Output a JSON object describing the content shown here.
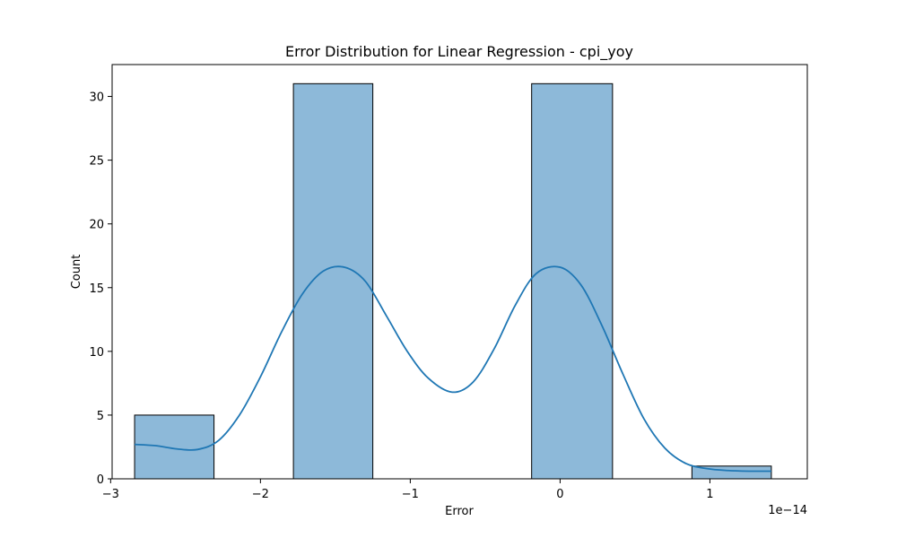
{
  "chart_data": {
    "type": "bar",
    "title": "Error Distribution for Linear Regression - cpi_yoy",
    "xlabel": "Error",
    "ylabel": "Count",
    "x_offset_text": "1e−14",
    "xlim": [
      -2.99,
      1.65
    ],
    "ylim": [
      0,
      32.5
    ],
    "x_ticks": [
      -3,
      -2,
      -1,
      0,
      1
    ],
    "x_tick_labels": [
      "−3",
      "−2",
      "−1",
      "0",
      "1"
    ],
    "y_ticks": [
      0,
      5,
      10,
      15,
      20,
      25,
      30
    ],
    "y_tick_labels": [
      "0",
      "5",
      "10",
      "15",
      "20",
      "25",
      "30"
    ],
    "bins": [
      {
        "x0": -2.84,
        "x1": -2.31,
        "count": 5
      },
      {
        "x0": -2.31,
        "x1": -1.78,
        "count": 0
      },
      {
        "x0": -1.78,
        "x1": -1.25,
        "count": 31
      },
      {
        "x0": -1.25,
        "x1": -0.72,
        "count": 0
      },
      {
        "x0": -0.72,
        "x1": -0.19,
        "count": 0
      },
      {
        "x0": -0.19,
        "x1": 0.35,
        "count": 31
      },
      {
        "x0": 0.35,
        "x1": 0.88,
        "count": 0
      },
      {
        "x0": 0.88,
        "x1": 1.41,
        "count": 1
      }
    ],
    "kde": {
      "x": [
        -2.84,
        -2.7,
        -2.56,
        -2.42,
        -2.28,
        -2.14,
        -2.0,
        -1.86,
        -1.72,
        -1.58,
        -1.44,
        -1.3,
        -1.16,
        -1.02,
        -0.88,
        -0.72,
        -0.58,
        -0.44,
        -0.3,
        -0.16,
        0.0,
        0.14,
        0.28,
        0.42,
        0.56,
        0.7,
        0.84,
        0.98,
        1.12,
        1.26,
        1.41
      ],
      "y": [
        2.7,
        2.6,
        2.35,
        2.3,
        3.0,
        5.0,
        8.0,
        11.5,
        14.5,
        16.3,
        16.6,
        15.5,
        12.8,
        10.0,
        7.9,
        6.8,
        7.6,
        10.2,
        13.6,
        16.1,
        16.6,
        15.2,
        12.0,
        8.2,
        4.7,
        2.4,
        1.2,
        0.8,
        0.65,
        0.6,
        0.6
      ]
    },
    "colors": {
      "bar_fill": "#8db9d9",
      "bar_edge": "#000000",
      "kde_line": "#1f77b4"
    },
    "grid": false,
    "legend": "none"
  }
}
